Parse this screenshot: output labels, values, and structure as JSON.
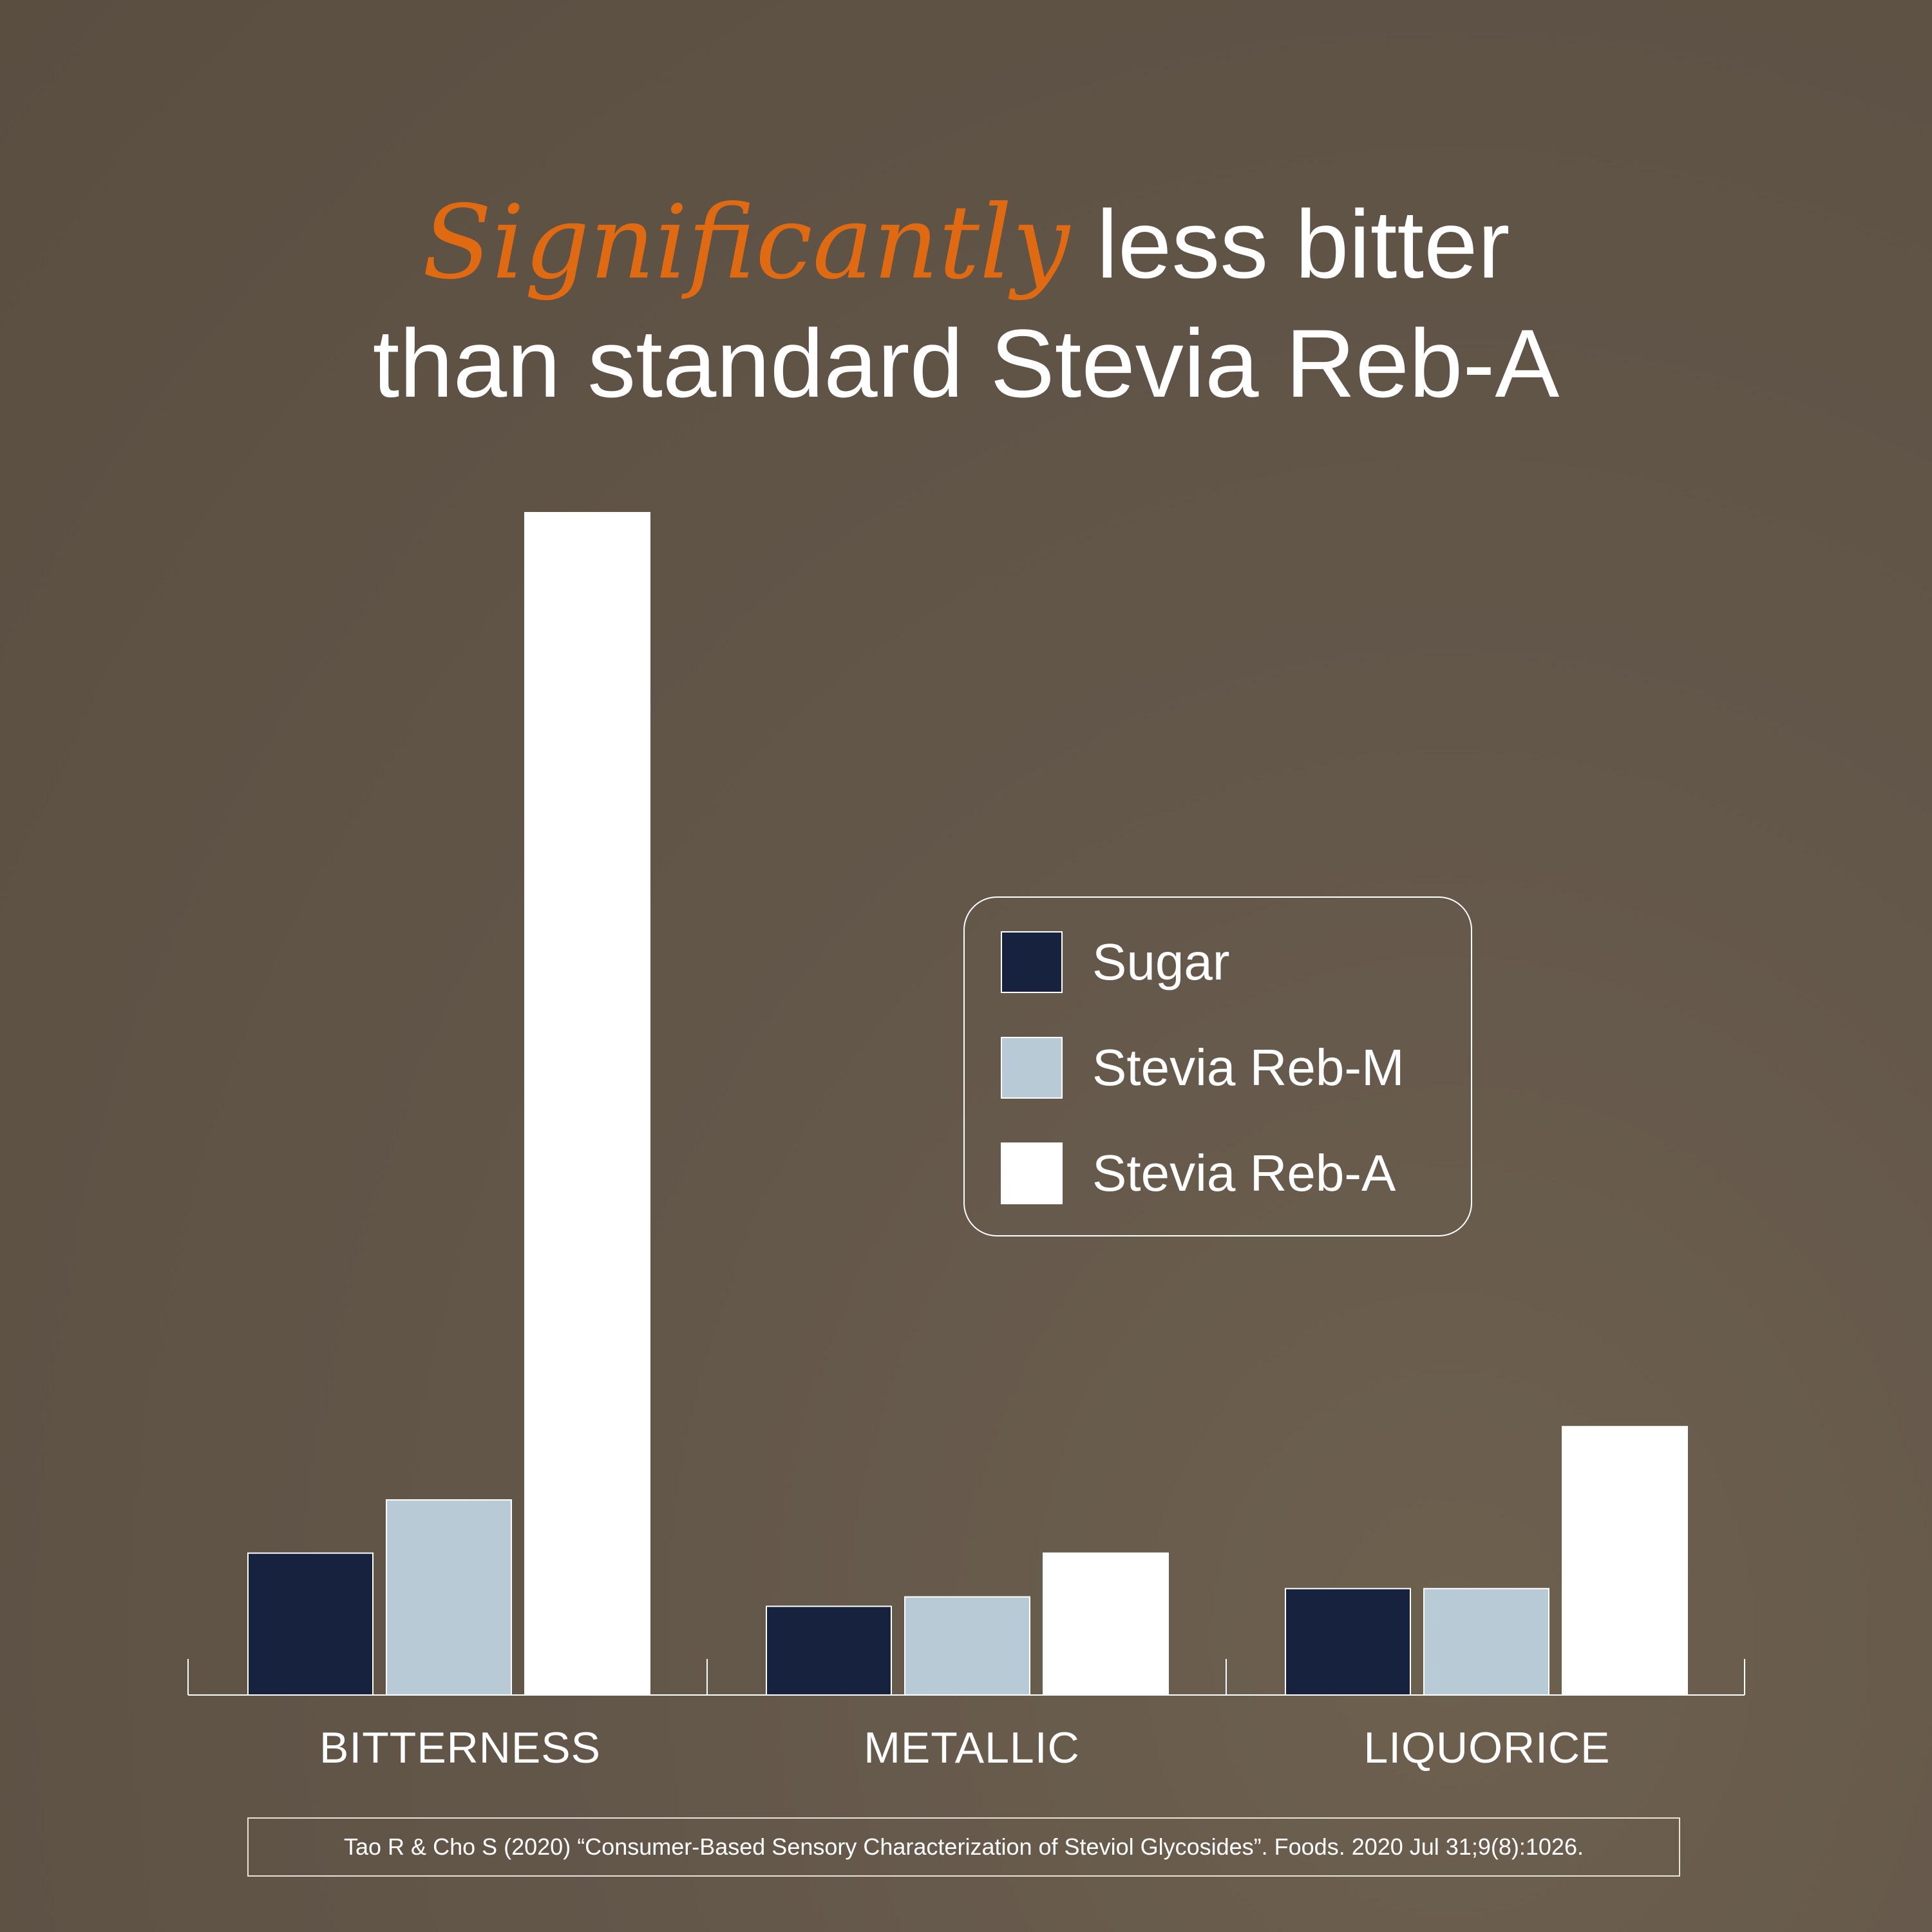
{
  "title": {
    "emphasis": "Significantly",
    "line1_rest": " less bitter",
    "line2": "than standard Stevia Reb-A"
  },
  "colors": {
    "background": "#5e5244",
    "accent": "#e06a12",
    "sugar": "#17223f",
    "reb_m": "#b8cad6",
    "reb_a": "#ffffff"
  },
  "legend": {
    "items": [
      {
        "label": "Sugar",
        "color": "#17223f"
      },
      {
        "label": "Stevia Reb-M",
        "color": "#b8cad6"
      },
      {
        "label": "Stevia Reb-A",
        "color": "#ffffff"
      }
    ]
  },
  "chart_data": {
    "type": "bar",
    "title": "Significantly less bitter than standard Stevia Reb-A",
    "categories": [
      "BITTERNESS",
      "METALLIC",
      "LIQUORICE"
    ],
    "series": [
      {
        "name": "Sugar",
        "values": [
          12,
          7.5,
          9
        ]
      },
      {
        "name": "Stevia Reb-M",
        "values": [
          16.5,
          8.3,
          9
        ]
      },
      {
        "name": "Stevia Reb-A",
        "values": [
          100,
          12,
          22.7
        ]
      }
    ],
    "xlabel": "",
    "ylabel": "",
    "ylim": [
      0,
      100
    ],
    "grid": false,
    "legend_position": "right"
  },
  "source": "Tao R & Cho S (2020) “Consumer-Based Sensory Characterization of Steviol Glycosides”. Foods. 2020 Jul 31;9(8):1026."
}
